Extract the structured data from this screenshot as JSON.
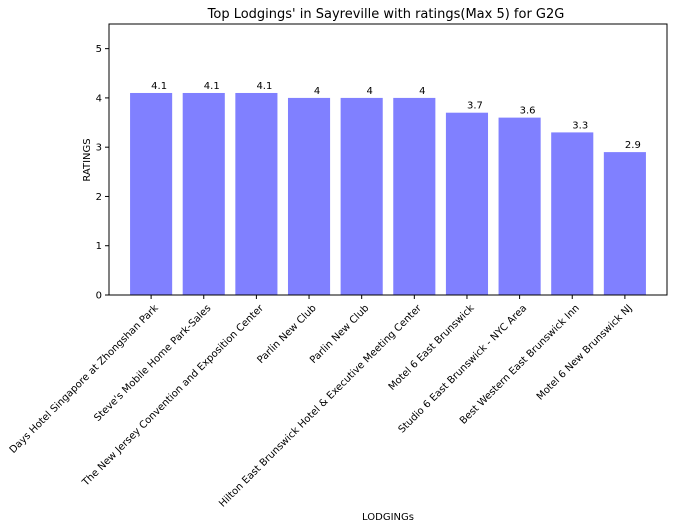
{
  "chart_data": {
    "type": "bar",
    "title": "Top Lodgings' in Sayreville with ratings(Max 5) for G2G",
    "xlabel": "LODGINGs",
    "ylabel": "RATINGS",
    "ylim": [
      0,
      5.5
    ],
    "yticks": [
      0,
      1,
      2,
      3,
      4,
      5
    ],
    "grid": false,
    "bar_color": "#8080ff",
    "categories": [
      "Days Hotel Singapore at Zhongshan Park",
      "Steve's Mobile Home Park-Sales",
      "The New Jersey Convention and Exposition Center",
      "Parlin New Club",
      "Parlin New Club",
      "Hilton East Brunswick Hotel & Executive Meeting Center",
      "Motel 6 East Brunswick",
      "Studio 6 East Brunswick - NYC Area",
      "Best Western East Brunswick Inn",
      "Motel 6 New Brunswick NJ"
    ],
    "values": [
      4.1,
      4.1,
      4.1,
      4,
      4,
      4,
      3.7,
      3.6,
      3.3,
      2.9
    ],
    "value_labels": [
      "4.1",
      "4.1",
      "4.1",
      "4",
      "4",
      "4",
      "3.7",
      "3.6",
      "3.3",
      "2.9"
    ]
  }
}
